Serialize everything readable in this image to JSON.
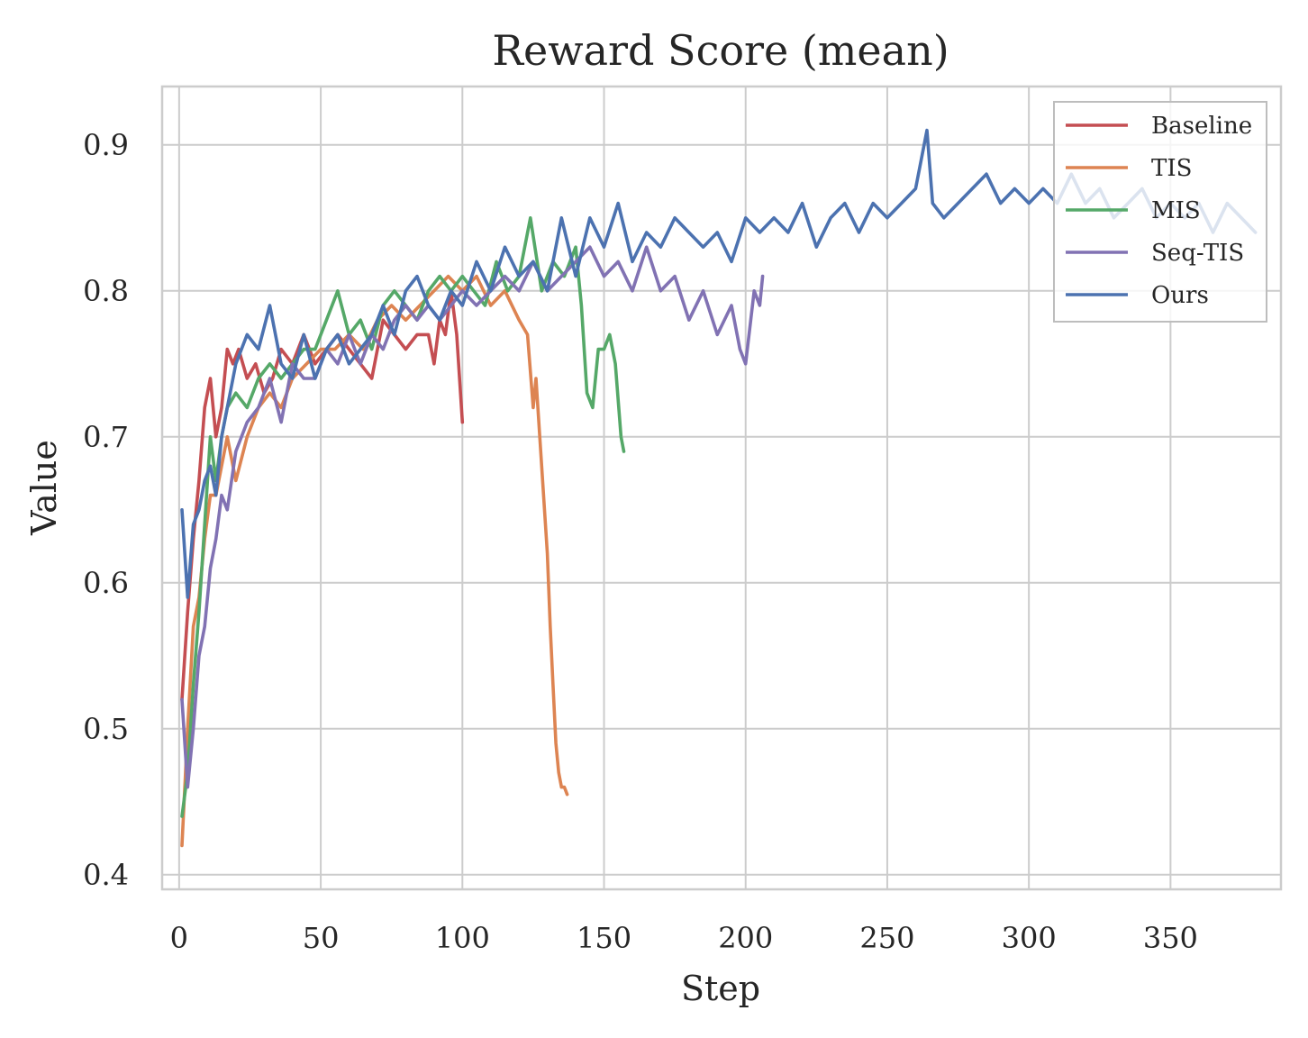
{
  "chart_data": {
    "type": "line",
    "title": "Reward Score (mean)",
    "xlabel": "Step",
    "ylabel": "Value",
    "xlim": [
      -6,
      389
    ],
    "ylim": [
      0.39,
      0.94
    ],
    "xticks": [
      0,
      50,
      100,
      150,
      200,
      250,
      300,
      350
    ],
    "yticks": [
      0.4,
      0.5,
      0.6,
      0.7,
      0.8,
      0.9
    ],
    "ytick_labels": [
      "0.4",
      "0.5",
      "0.6",
      "0.7",
      "0.8",
      "0.9"
    ],
    "grid": true,
    "legend_position": "top-right",
    "series": [
      {
        "name": "Baseline",
        "color": "#c44e52",
        "x": [
          1,
          3,
          5,
          7,
          9,
          11,
          13,
          15,
          17,
          19,
          21,
          24,
          27,
          30,
          33,
          36,
          40,
          44,
          48,
          52,
          56,
          60,
          64,
          68,
          72,
          76,
          80,
          84,
          88,
          90,
          92,
          94,
          96,
          98,
          100
        ],
        "y": [
          0.52,
          0.58,
          0.63,
          0.67,
          0.72,
          0.74,
          0.7,
          0.72,
          0.76,
          0.75,
          0.76,
          0.74,
          0.75,
          0.73,
          0.74,
          0.76,
          0.75,
          0.77,
          0.75,
          0.76,
          0.77,
          0.76,
          0.75,
          0.74,
          0.78,
          0.77,
          0.76,
          0.77,
          0.77,
          0.75,
          0.78,
          0.77,
          0.8,
          0.77,
          0.71
        ]
      },
      {
        "name": "TIS",
        "color": "#dd8452",
        "x": [
          1,
          3,
          5,
          7,
          9,
          11,
          13,
          15,
          17,
          20,
          24,
          28,
          32,
          36,
          40,
          45,
          50,
          55,
          60,
          65,
          70,
          75,
          80,
          85,
          90,
          95,
          100,
          105,
          110,
          115,
          120,
          123,
          125,
          126,
          128,
          130,
          131,
          132,
          133,
          134,
          135,
          136,
          137
        ],
        "y": [
          0.42,
          0.5,
          0.57,
          0.59,
          0.63,
          0.66,
          0.66,
          0.68,
          0.7,
          0.67,
          0.7,
          0.72,
          0.73,
          0.72,
          0.74,
          0.75,
          0.76,
          0.76,
          0.77,
          0.76,
          0.78,
          0.79,
          0.78,
          0.79,
          0.8,
          0.81,
          0.8,
          0.81,
          0.79,
          0.8,
          0.78,
          0.77,
          0.72,
          0.74,
          0.68,
          0.62,
          0.57,
          0.53,
          0.49,
          0.47,
          0.46,
          0.46,
          0.455
        ]
      },
      {
        "name": "MIS",
        "color": "#55a868",
        "x": [
          1,
          3,
          5,
          7,
          9,
          11,
          13,
          15,
          17,
          20,
          24,
          28,
          32,
          36,
          40,
          44,
          48,
          52,
          56,
          60,
          64,
          68,
          72,
          76,
          80,
          84,
          88,
          92,
          96,
          100,
          104,
          108,
          112,
          116,
          120,
          124,
          128,
          132,
          136,
          140,
          142,
          144,
          146,
          148,
          150,
          152,
          154,
          156,
          157
        ],
        "y": [
          0.44,
          0.47,
          0.53,
          0.58,
          0.64,
          0.7,
          0.67,
          0.7,
          0.72,
          0.73,
          0.72,
          0.74,
          0.75,
          0.74,
          0.75,
          0.76,
          0.76,
          0.78,
          0.8,
          0.77,
          0.78,
          0.76,
          0.79,
          0.8,
          0.79,
          0.78,
          0.8,
          0.81,
          0.8,
          0.81,
          0.8,
          0.79,
          0.82,
          0.8,
          0.81,
          0.85,
          0.8,
          0.82,
          0.81,
          0.83,
          0.79,
          0.73,
          0.72,
          0.76,
          0.76,
          0.77,
          0.75,
          0.7,
          0.69
        ]
      },
      {
        "name": "Seq-TIS",
        "color": "#8172b3",
        "x": [
          1,
          3,
          5,
          7,
          9,
          11,
          13,
          15,
          17,
          20,
          24,
          28,
          32,
          36,
          40,
          44,
          48,
          52,
          56,
          60,
          64,
          68,
          72,
          76,
          80,
          84,
          88,
          92,
          96,
          100,
          105,
          110,
          115,
          120,
          125,
          130,
          135,
          140,
          145,
          150,
          155,
          160,
          165,
          170,
          175,
          180,
          185,
          190,
          195,
          198,
          200,
          203,
          205,
          206
        ],
        "y": [
          0.52,
          0.46,
          0.5,
          0.55,
          0.57,
          0.61,
          0.63,
          0.66,
          0.65,
          0.69,
          0.71,
          0.72,
          0.74,
          0.71,
          0.75,
          0.74,
          0.74,
          0.76,
          0.75,
          0.77,
          0.75,
          0.77,
          0.76,
          0.78,
          0.79,
          0.78,
          0.79,
          0.78,
          0.79,
          0.8,
          0.79,
          0.8,
          0.81,
          0.8,
          0.82,
          0.8,
          0.81,
          0.82,
          0.83,
          0.81,
          0.82,
          0.8,
          0.83,
          0.8,
          0.81,
          0.78,
          0.8,
          0.77,
          0.79,
          0.76,
          0.75,
          0.8,
          0.79,
          0.81
        ]
      },
      {
        "name": "Ours",
        "color": "#4c72b0",
        "x": [
          1,
          3,
          5,
          7,
          9,
          11,
          13,
          15,
          17,
          20,
          24,
          28,
          32,
          36,
          40,
          44,
          48,
          52,
          56,
          60,
          64,
          68,
          72,
          76,
          80,
          84,
          88,
          92,
          96,
          100,
          105,
          110,
          115,
          120,
          125,
          130,
          135,
          140,
          145,
          150,
          155,
          160,
          165,
          170,
          175,
          180,
          185,
          190,
          195,
          200,
          205,
          210,
          215,
          220,
          225,
          230,
          235,
          240,
          245,
          250,
          255,
          260,
          262,
          264,
          266,
          270,
          275,
          280,
          285,
          290,
          295,
          300,
          305,
          310,
          315,
          320,
          325,
          330,
          335,
          340,
          345,
          350,
          355,
          360,
          365,
          370,
          375,
          380
        ],
        "y": [
          0.65,
          0.59,
          0.64,
          0.65,
          0.67,
          0.68,
          0.66,
          0.7,
          0.72,
          0.75,
          0.77,
          0.76,
          0.79,
          0.75,
          0.74,
          0.77,
          0.74,
          0.76,
          0.77,
          0.75,
          0.76,
          0.77,
          0.79,
          0.77,
          0.8,
          0.81,
          0.79,
          0.78,
          0.8,
          0.79,
          0.82,
          0.8,
          0.83,
          0.81,
          0.82,
          0.8,
          0.85,
          0.81,
          0.85,
          0.83,
          0.86,
          0.82,
          0.84,
          0.83,
          0.85,
          0.84,
          0.83,
          0.84,
          0.82,
          0.85,
          0.84,
          0.85,
          0.84,
          0.86,
          0.83,
          0.85,
          0.86,
          0.84,
          0.86,
          0.85,
          0.86,
          0.87,
          0.89,
          0.91,
          0.86,
          0.85,
          0.86,
          0.87,
          0.88,
          0.86,
          0.87,
          0.86,
          0.87,
          0.86,
          0.88,
          0.86,
          0.87,
          0.85,
          0.86,
          0.87,
          0.85,
          0.86,
          0.85,
          0.86,
          0.84,
          0.86,
          0.85,
          0.84
        ]
      }
    ]
  }
}
